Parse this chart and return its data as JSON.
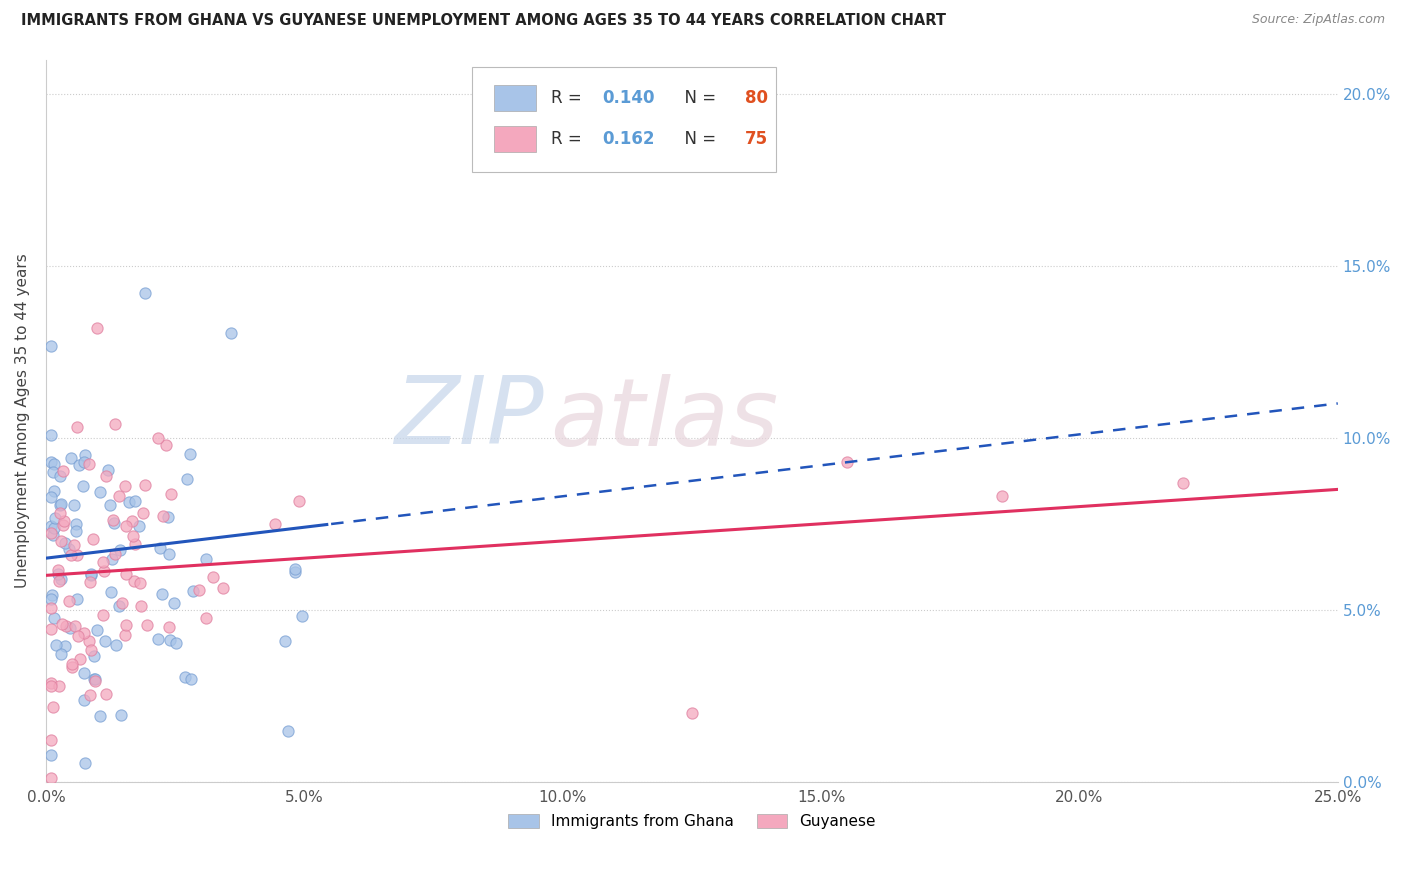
{
  "title": "IMMIGRANTS FROM GHANA VS GUYANESE UNEMPLOYMENT AMONG AGES 35 TO 44 YEARS CORRELATION CHART",
  "source": "Source: ZipAtlas.com",
  "ylabel": "Unemployment Among Ages 35 to 44 years",
  "ghana_R": 0.14,
  "ghana_N": 80,
  "guyanese_R": 0.162,
  "guyanese_N": 75,
  "ghana_color": "#a8c4e8",
  "guyanese_color": "#f4a8be",
  "ghana_line_color": "#2255bb",
  "guyanese_line_color": "#e03060",
  "watermark_color": "#d0ddf0",
  "watermark_color2": "#e8d0d8",
  "background_color": "#ffffff",
  "xlim": [
    0.0,
    0.25
  ],
  "ylim": [
    0.0,
    0.21
  ],
  "ytick_color": "#5b9bd5",
  "xtick_color": "#555555",
  "legend_R_color": "#5b9bd5",
  "legend_N_color": "#e05020"
}
